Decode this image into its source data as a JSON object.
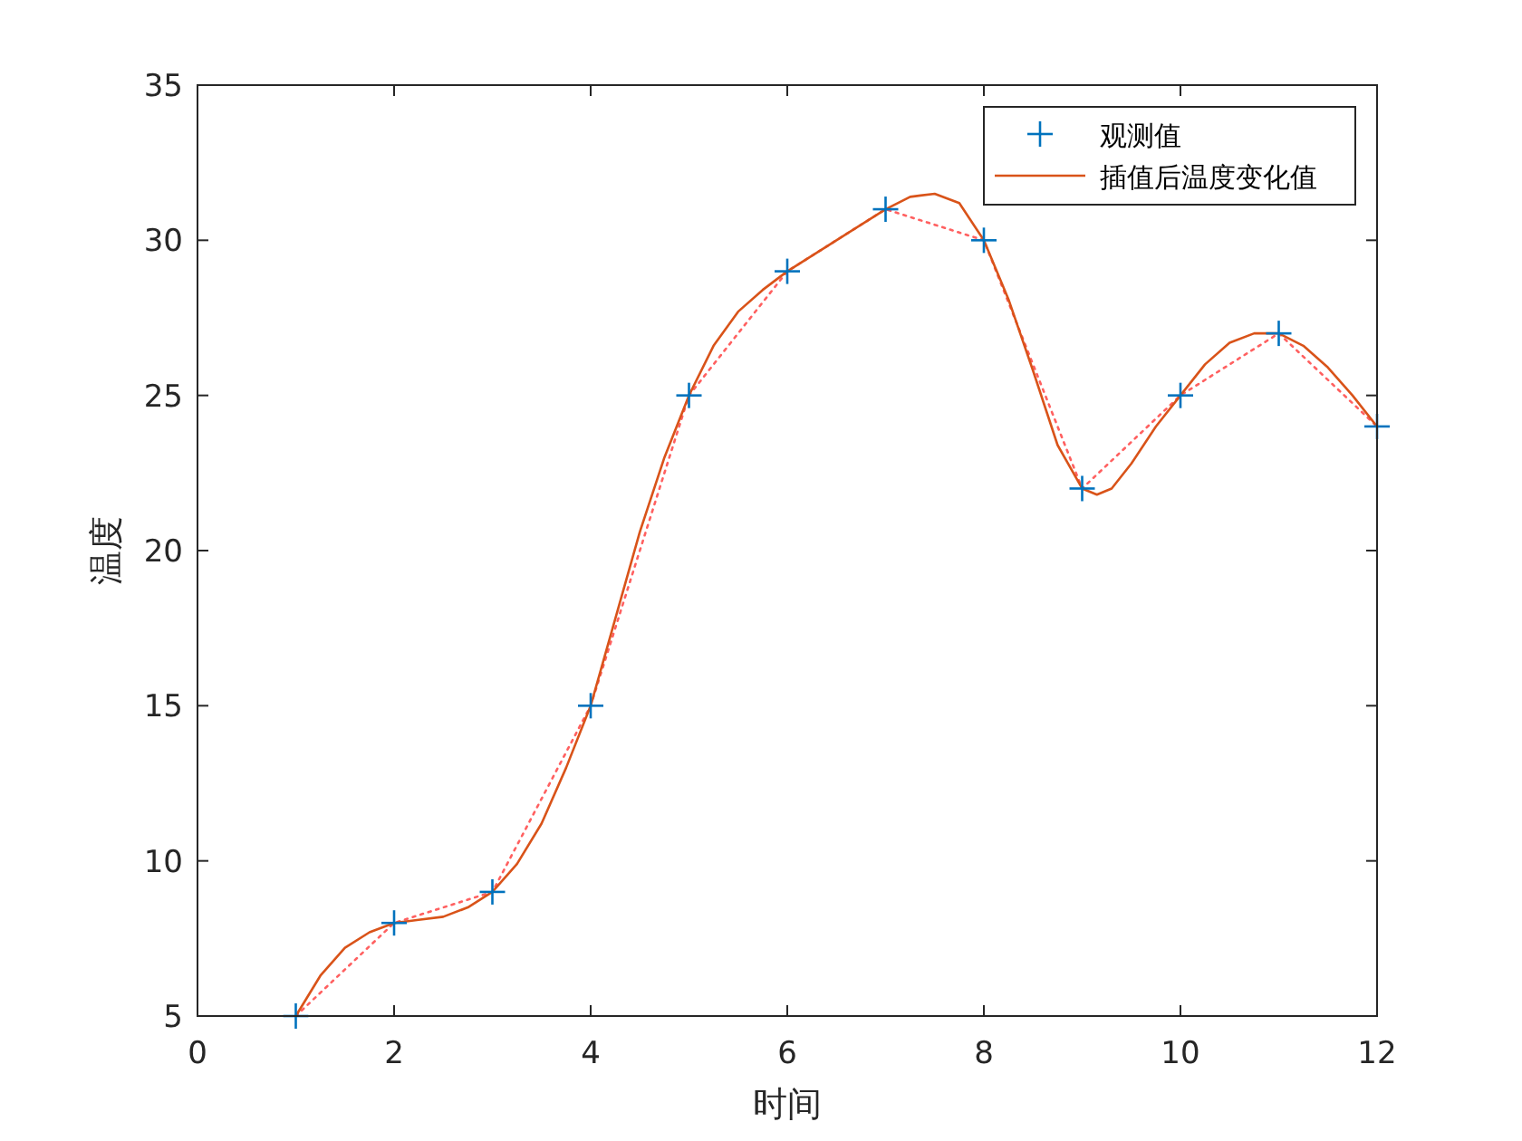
{
  "chart_data": {
    "type": "line",
    "xlabel": "时间",
    "ylabel": "温度",
    "xlim": [
      0,
      12
    ],
    "ylim": [
      5,
      35
    ],
    "xticks": [
      0,
      2,
      4,
      6,
      8,
      10,
      12
    ],
    "yticks": [
      5,
      10,
      15,
      20,
      25,
      30,
      35
    ],
    "legend": "top right",
    "series": [
      {
        "name": "观测值",
        "type": "scatter",
        "marker": "cross",
        "color": "#0072bd",
        "x": [
          1,
          2,
          3,
          4,
          5,
          6,
          7,
          8,
          9,
          10,
          11,
          12
        ],
        "values": [
          5,
          8,
          9,
          15,
          25,
          29,
          31,
          30,
          22,
          25,
          27,
          24
        ]
      },
      {
        "type": "line",
        "line_style": "dotted",
        "color": "#ff6060",
        "x": [
          1,
          2,
          3,
          4,
          5,
          6,
          7,
          8,
          9,
          10,
          11,
          12
        ],
        "values": [
          5,
          8,
          9,
          15,
          25,
          29,
          31,
          30,
          22,
          25,
          27,
          24
        ]
      },
      {
        "name": "插值后温度变化值",
        "type": "line",
        "line_style": "solid",
        "color": "#d95319",
        "x": [
          1,
          1.25,
          1.5,
          1.75,
          2,
          2.25,
          2.5,
          2.75,
          3,
          3.25,
          3.5,
          3.75,
          4,
          4.25,
          4.5,
          4.75,
          5,
          5.25,
          5.5,
          5.75,
          6,
          6.5,
          7,
          7.25,
          7.5,
          7.75,
          8,
          8.25,
          8.5,
          8.75,
          9,
          9.15,
          9.3,
          9.5,
          9.75,
          10,
          10.25,
          10.5,
          10.75,
          11,
          11.25,
          11.5,
          11.75,
          12
        ],
        "values": [
          5,
          6.3,
          7.2,
          7.7,
          8,
          8.1,
          8.2,
          8.5,
          9,
          9.9,
          11.2,
          13,
          15,
          17.8,
          20.6,
          23,
          25,
          26.6,
          27.7,
          28.4,
          29,
          30,
          31,
          31.4,
          31.5,
          31.2,
          30,
          28.1,
          25.8,
          23.4,
          22,
          21.8,
          22,
          22.8,
          24,
          25,
          26,
          26.7,
          27,
          27,
          26.6,
          25.9,
          25,
          24
        ]
      }
    ]
  }
}
